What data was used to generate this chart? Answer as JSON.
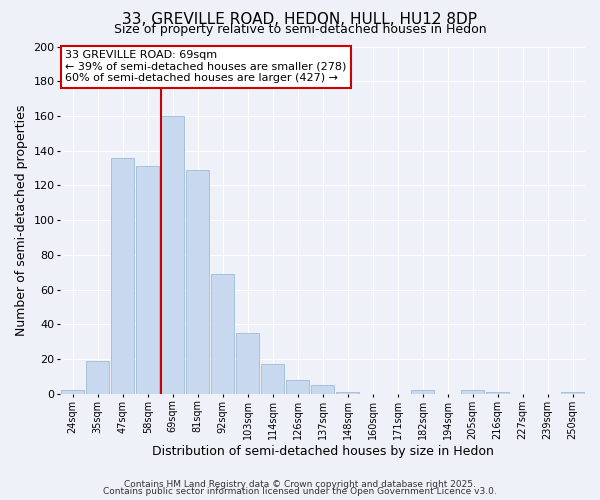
{
  "title": "33, GREVILLE ROAD, HEDON, HULL, HU12 8DP",
  "subtitle": "Size of property relative to semi-detached houses in Hedon",
  "xlabel": "Distribution of semi-detached houses by size in Hedon",
  "ylabel": "Number of semi-detached properties",
  "bar_color": "#c8d8ee",
  "bar_edge_color": "#a0bcd8",
  "categories": [
    "24sqm",
    "35sqm",
    "47sqm",
    "58sqm",
    "69sqm",
    "81sqm",
    "92sqm",
    "103sqm",
    "114sqm",
    "126sqm",
    "137sqm",
    "148sqm",
    "160sqm",
    "171sqm",
    "182sqm",
    "194sqm",
    "205sqm",
    "216sqm",
    "227sqm",
    "239sqm",
    "250sqm"
  ],
  "values": [
    2,
    19,
    136,
    131,
    160,
    129,
    69,
    35,
    17,
    8,
    5,
    1,
    0,
    0,
    2,
    0,
    2,
    1,
    0,
    0,
    1
  ],
  "ylim": [
    0,
    200
  ],
  "yticks": [
    0,
    20,
    40,
    60,
    80,
    100,
    120,
    140,
    160,
    180,
    200
  ],
  "vline_index": 4,
  "vline_color": "#cc0000",
  "annotation_title": "33 GREVILLE ROAD: 69sqm",
  "annotation_line1": "← 39% of semi-detached houses are smaller (278)",
  "annotation_line2": "60% of semi-detached houses are larger (427) →",
  "annotation_box_color": "#ffffff",
  "annotation_box_edge": "#cc0000",
  "footer1": "Contains HM Land Registry data © Crown copyright and database right 2025.",
  "footer2": "Contains public sector information licensed under the Open Government Licence v3.0.",
  "background_color": "#eef2f8",
  "grid_color": "#ffffff",
  "title_fontsize": 11,
  "subtitle_fontsize": 9,
  "ylabel_text": "Number of semi-detached properties"
}
